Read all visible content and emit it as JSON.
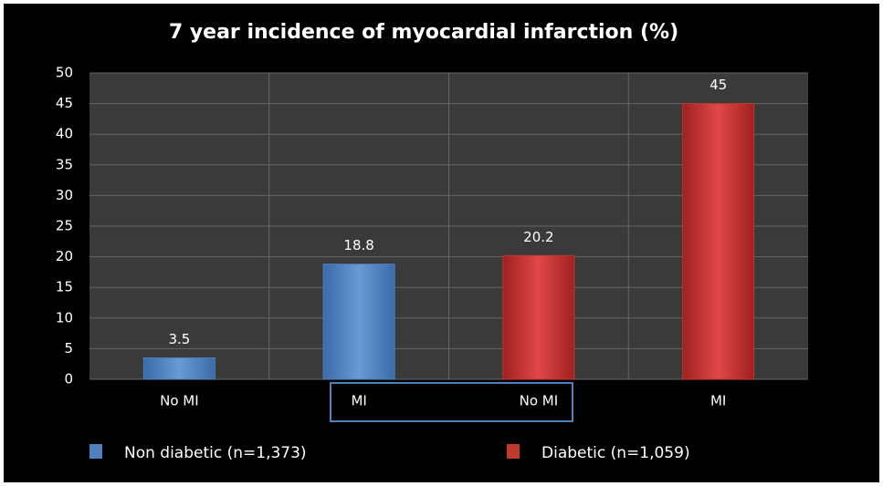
{
  "chart_data": {
    "type": "bar",
    "title": "7 year incidence of myocardial infarction (%)",
    "categories": [
      "No MI",
      "MI",
      "No MI",
      "MI"
    ],
    "series": [
      {
        "name": "Non diabetic  (n=1,373)",
        "color": "#4f81bd",
        "values": [
          3.5,
          18.8,
          null,
          null
        ]
      },
      {
        "name": "Diabetic  (n=1,059)",
        "color": "#c0392b",
        "values": [
          null,
          null,
          20.2,
          45
        ]
      }
    ],
    "ylim": [
      0,
      50
    ],
    "yticks": [
      0,
      5,
      10,
      15,
      20,
      25,
      30,
      35,
      40,
      45,
      50
    ],
    "grid": true,
    "legend": "bottom"
  }
}
